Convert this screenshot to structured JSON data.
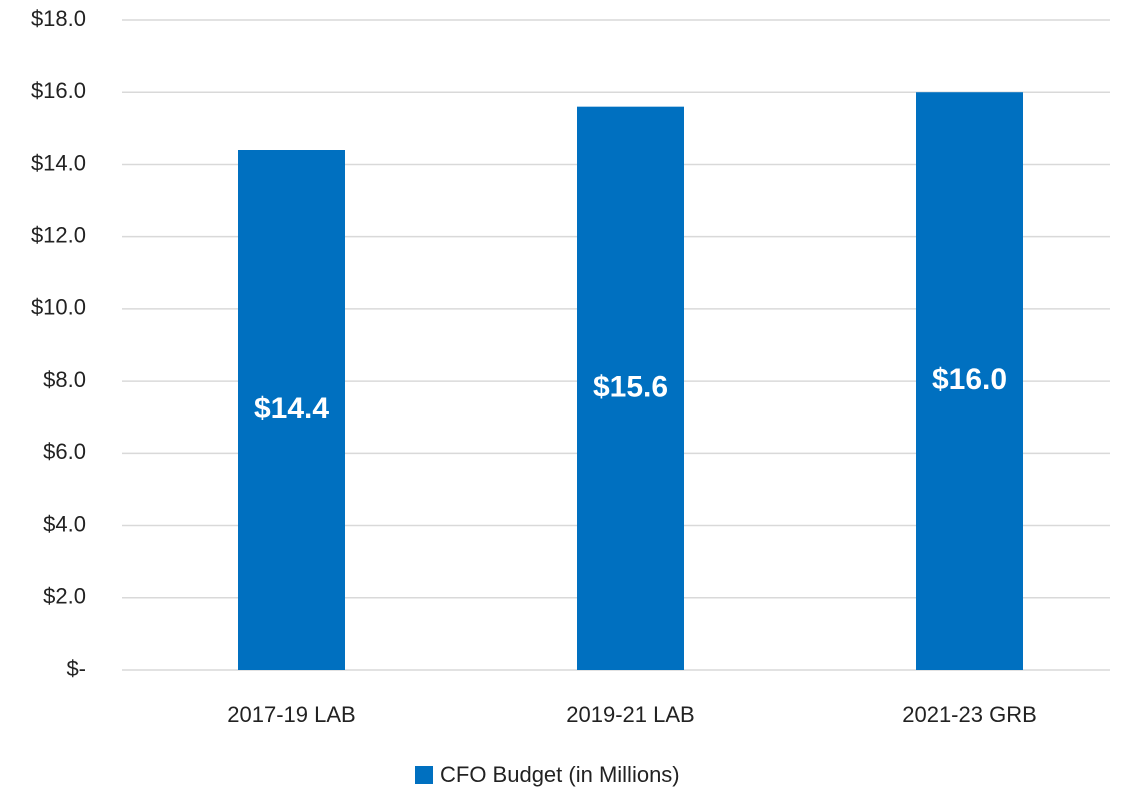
{
  "chart_data": {
    "type": "bar",
    "categories": [
      "2017-19 LAB",
      "2019-21 LAB",
      "2021-23 GRB"
    ],
    "series": [
      {
        "name": "CFO Budget (in Millions)",
        "color": "#0070c0",
        "values": [
          14.4,
          15.6,
          16.0
        ],
        "value_labels": [
          "$14.4",
          "$15.6",
          "$16.0"
        ]
      }
    ],
    "ylim": [
      0,
      18
    ],
    "yticks": [
      {
        "value": 0,
        "label": "$-"
      },
      {
        "value": 2,
        "label": "$2.0"
      },
      {
        "value": 4,
        "label": "$4.0"
      },
      {
        "value": 6,
        "label": "$6.0"
      },
      {
        "value": 8,
        "label": "$8.0"
      },
      {
        "value": 10,
        "label": "$10.0"
      },
      {
        "value": 12,
        "label": "$12.0"
      },
      {
        "value": 14,
        "label": "$14.0"
      },
      {
        "value": 16,
        "label": "$16.0"
      },
      {
        "value": 18,
        "label": "$18.0"
      }
    ],
    "grid": true,
    "legend": "bottom"
  }
}
